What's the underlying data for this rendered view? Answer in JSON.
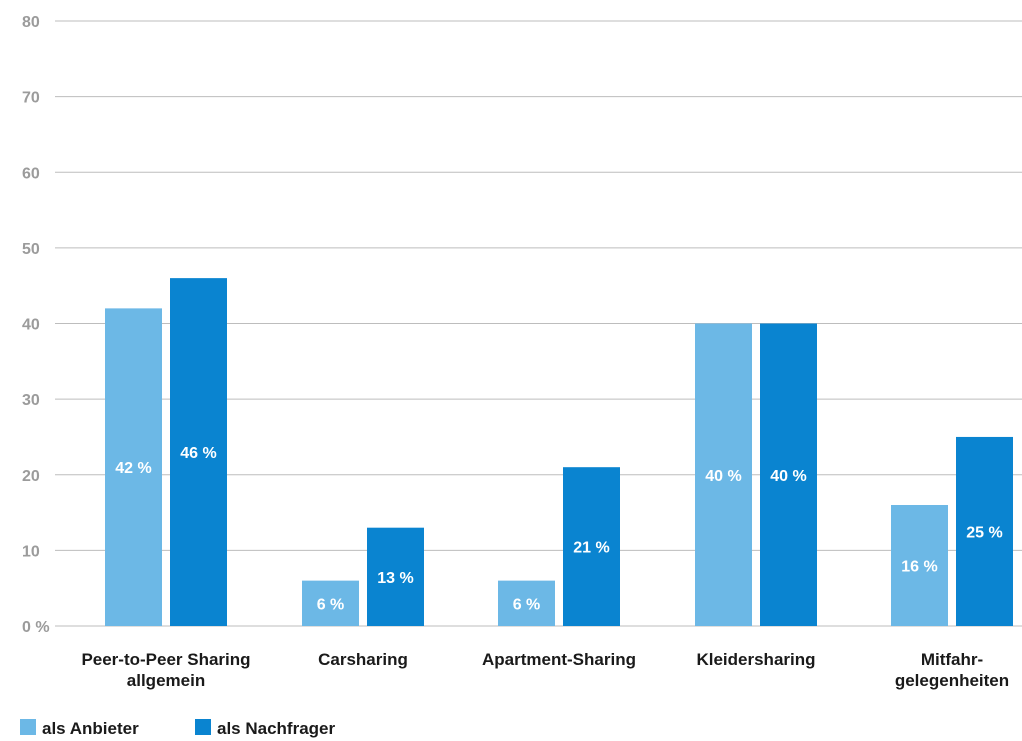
{
  "chart_data": {
    "type": "bar",
    "categories": [
      [
        "Peer-to-Peer Sharing",
        "allgemein"
      ],
      [
        "Carsharing"
      ],
      [
        "Apartment-Sharing"
      ],
      [
        "Kleidersharing"
      ],
      [
        "Mitfahr-",
        "gelegenheiten"
      ]
    ],
    "series": [
      {
        "name": "als Anbieter",
        "color": "#6cb8e6",
        "values": [
          42,
          6,
          6,
          40,
          16
        ],
        "labels": [
          "42 %",
          "6 %",
          "6 %",
          "40 %",
          "16 %"
        ]
      },
      {
        "name": "als Nachfrager",
        "color": "#0a84d0",
        "values": [
          46,
          13,
          21,
          40,
          25
        ],
        "labels": [
          "46 %",
          "13 %",
          "21 %",
          "40 %",
          "25 %"
        ]
      }
    ],
    "ylim": [
      0,
      80
    ],
    "yticks": [
      0,
      10,
      20,
      30,
      40,
      50,
      60,
      70,
      80
    ],
    "ytick_labels": [
      "0 %",
      "10",
      "20",
      "30",
      "40",
      "50",
      "60",
      "70",
      "80"
    ],
    "grid": true,
    "legend_position": "bottom-left",
    "title": "",
    "xlabel": "",
    "ylabel": ""
  }
}
